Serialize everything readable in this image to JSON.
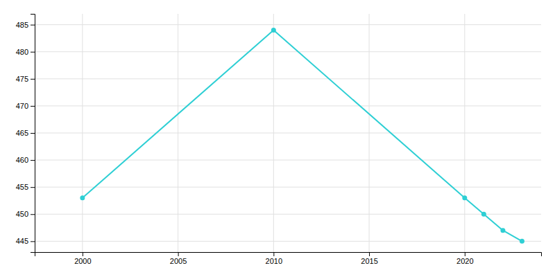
{
  "chart_data": {
    "type": "line",
    "x": [
      2000,
      2010,
      2020,
      2021,
      2022,
      2023
    ],
    "values": [
      453,
      484,
      453,
      450,
      447,
      445
    ],
    "color": "#2ECFD4",
    "marker": "circle",
    "xlim": [
      1997.5,
      2024
    ],
    "ylim": [
      443,
      487
    ],
    "xticks": [
      2000,
      2005,
      2010,
      2015,
      2020
    ],
    "yticks": [
      445,
      450,
      455,
      460,
      465,
      470,
      475,
      480,
      485
    ],
    "grid": true
  }
}
